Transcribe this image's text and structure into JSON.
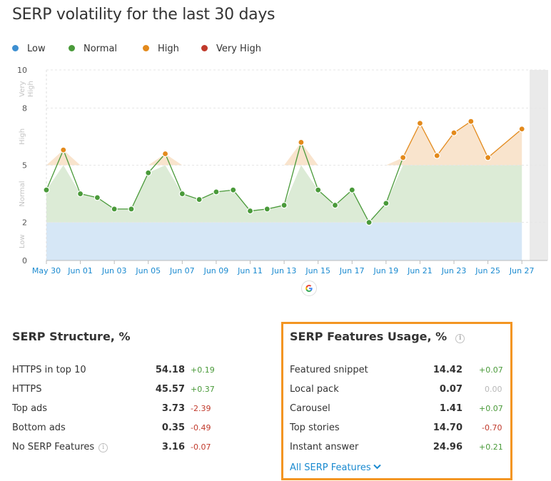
{
  "title": "SERP volatility for the last 30 days",
  "legend": [
    {
      "label": "Low",
      "color": "#3d8fd1"
    },
    {
      "label": "Normal",
      "color": "#4a9a3a"
    },
    {
      "label": "High",
      "color": "#e38a1c"
    },
    {
      "label": "Very High",
      "color": "#c0392b"
    }
  ],
  "chart_data": {
    "type": "area",
    "x": [
      "May 30",
      "May 31",
      "Jun 01",
      "Jun 02",
      "Jun 03",
      "Jun 04",
      "Jun 05",
      "Jun 06",
      "Jun 07",
      "Jun 08",
      "Jun 09",
      "Jun 10",
      "Jun 11",
      "Jun 12",
      "Jun 13",
      "Jun 14",
      "Jun 15",
      "Jun 16",
      "Jun 17",
      "Jun 18",
      "Jun 19",
      "Jun 20",
      "Jun 21",
      "Jun 22",
      "Jun 23",
      "Jun 24",
      "Jun 25",
      "Jun 27"
    ],
    "values": [
      3.7,
      5.8,
      3.5,
      3.3,
      2.7,
      2.7,
      4.6,
      5.6,
      3.5,
      3.2,
      3.6,
      3.7,
      2.6,
      2.7,
      2.9,
      6.2,
      3.7,
      2.9,
      3.7,
      2.0,
      3.0,
      5.4,
      7.2,
      5.5,
      6.7,
      7.3,
      5.4,
      6.9
    ],
    "xticks": [
      "May 30",
      "Jun 01",
      "Jun 03",
      "Jun 05",
      "Jun 07",
      "Jun 09",
      "Jun 11",
      "Jun 13",
      "Jun 15",
      "Jun 17",
      "Jun 19",
      "Jun 21",
      "Jun 23",
      "Jun 25",
      "Jun 27"
    ],
    "yticks": [
      0,
      2,
      5,
      8,
      10
    ],
    "ylim": [
      0,
      10
    ],
    "bands": [
      {
        "label": "Low",
        "from": 0,
        "to": 2,
        "color": "#3d8fd1"
      },
      {
        "label": "Normal",
        "from": 2,
        "to": 5,
        "color": "#4a9a3a"
      },
      {
        "label": "High",
        "from": 5,
        "to": 8,
        "color": "#e38a1c"
      },
      {
        "label": "Very High",
        "from": 8,
        "to": 10,
        "color": "#c0392b"
      }
    ],
    "band_labels": [
      "Low",
      "Normal",
      "High",
      "Very High"
    ],
    "grid": true
  },
  "serp_structure": {
    "title": "SERP Structure, %",
    "rows": [
      {
        "label": "HTTPS in top 10",
        "value": "54.18",
        "delta": "+0.19",
        "trend": "up"
      },
      {
        "label": "HTTPS",
        "value": "45.57",
        "delta": "+0.37",
        "trend": "up"
      },
      {
        "label": "Top ads",
        "value": "3.73",
        "delta": "-2.39",
        "trend": "down"
      },
      {
        "label": "Bottom ads",
        "value": "0.35",
        "delta": "-0.49",
        "trend": "down"
      },
      {
        "label": "No SERP Features",
        "value": "3.16",
        "delta": "-0.07",
        "trend": "down",
        "info": true
      }
    ]
  },
  "serp_features": {
    "title": "SERP Features Usage, %",
    "rows": [
      {
        "label": "Featured snippet",
        "value": "14.42",
        "delta": "+0.07",
        "trend": "up"
      },
      {
        "label": "Local pack",
        "value": "0.07",
        "delta": "0.00",
        "trend": "flat"
      },
      {
        "label": "Carousel",
        "value": "1.41",
        "delta": "+0.07",
        "trend": "up"
      },
      {
        "label": "Top stories",
        "value": "14.70",
        "delta": "-0.70",
        "trend": "down"
      },
      {
        "label": "Instant answer",
        "value": "24.96",
        "delta": "+0.21",
        "trend": "up"
      }
    ],
    "link_label": "All SERP Features"
  },
  "colors": {
    "up": "#4a9a3a",
    "down": "#c0392b",
    "flat": "#b8b8b8",
    "accent": "#f39522",
    "link": "#1a8ad0"
  }
}
